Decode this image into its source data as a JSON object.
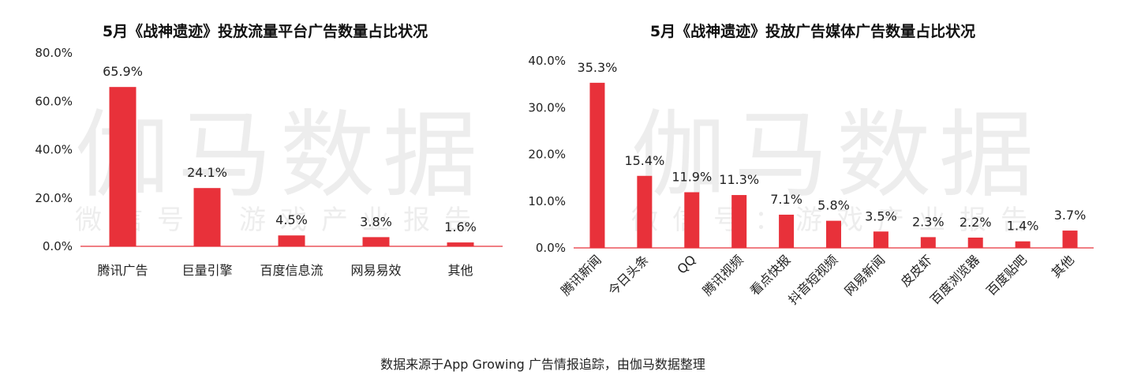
{
  "watermark": {
    "main": "伽马数据",
    "sub": "微信号：游戏产业报告"
  },
  "source": "数据来源于App Growing 广告情报追踪，由伽马数据整理",
  "colors": {
    "bar": "#e8313a",
    "axis": "#e8313a",
    "text": "#222222"
  },
  "chart_data": [
    {
      "type": "bar",
      "title": "5月《战神遗迹》投放流量平台广告数量占比状况",
      "categories": [
        "腾讯广告",
        "巨量引擎",
        "百度信息流",
        "网易易效",
        "其他"
      ],
      "values": [
        65.9,
        24.1,
        4.5,
        3.8,
        1.6
      ],
      "value_labels": [
        "65.9%",
        "24.1%",
        "4.5%",
        "3.8%",
        "1.6%"
      ],
      "yticks": [
        0,
        20,
        40,
        60,
        80
      ],
      "ytick_labels": [
        "0.0%",
        "20.0%",
        "40.0%",
        "60.0%",
        "80.0%"
      ],
      "ylim": [
        0,
        80
      ],
      "grid": false,
      "legend": "none"
    },
    {
      "type": "bar",
      "title": "5月《战神遗迹》投放广告媒体广告数量占比状况",
      "categories": [
        "腾讯新闻",
        "今日头条",
        "QQ",
        "腾讯视频",
        "看点快报",
        "抖音短视频",
        "网易新闻",
        "皮皮虾",
        "百度浏览器",
        "百度贴吧",
        "其他"
      ],
      "values": [
        35.3,
        15.4,
        11.9,
        11.3,
        7.1,
        5.8,
        3.5,
        2.3,
        2.2,
        1.4,
        3.7
      ],
      "value_labels": [
        "35.3%",
        "15.4%",
        "11.9%",
        "11.3%",
        "7.1%",
        "5.8%",
        "3.5%",
        "2.3%",
        "2.2%",
        "1.4%",
        "3.7%"
      ],
      "yticks": [
        0,
        10,
        20,
        30,
        40
      ],
      "ytick_labels": [
        "0.0%",
        "10.0%",
        "20.0%",
        "30.0%",
        "40.0%"
      ],
      "ylim": [
        0,
        40
      ],
      "grid": false,
      "legend": "none",
      "rotated_category_labels": true
    }
  ]
}
